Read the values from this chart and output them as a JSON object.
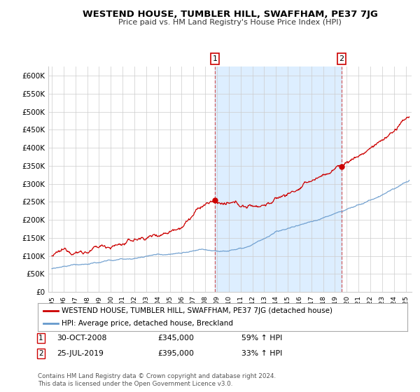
{
  "title": "WESTEND HOUSE, TUMBLER HILL, SWAFFHAM, PE37 7JG",
  "subtitle": "Price paid vs. HM Land Registry's House Price Index (HPI)",
  "ylabel_ticks": [
    "£0",
    "£50K",
    "£100K",
    "£150K",
    "£200K",
    "£250K",
    "£300K",
    "£350K",
    "£400K",
    "£450K",
    "£500K",
    "£550K",
    "£600K"
  ],
  "ytick_values": [
    0,
    50000,
    100000,
    150000,
    200000,
    250000,
    300000,
    350000,
    400000,
    450000,
    500000,
    550000,
    600000
  ],
  "ylim": [
    0,
    625000
  ],
  "xlim_start": 1994.7,
  "xlim_end": 2025.5,
  "line1_color": "#cc0000",
  "line2_color": "#6699cc",
  "line1_label": "WESTEND HOUSE, TUMBLER HILL, SWAFFHAM, PE37 7JG (detached house)",
  "line2_label": "HPI: Average price, detached house, Breckland",
  "sale1_x": 2008.83,
  "sale1_y": 345000,
  "sale1_label": "1",
  "sale2_x": 2019.56,
  "sale2_y": 395000,
  "sale2_label": "2",
  "shading_color": "#ddeeff",
  "vline_color": "#cc4444",
  "footer": "Contains HM Land Registry data © Crown copyright and database right 2024.\nThis data is licensed under the Open Government Licence v3.0.",
  "bg_color": "#ffffff",
  "grid_color": "#cccccc"
}
